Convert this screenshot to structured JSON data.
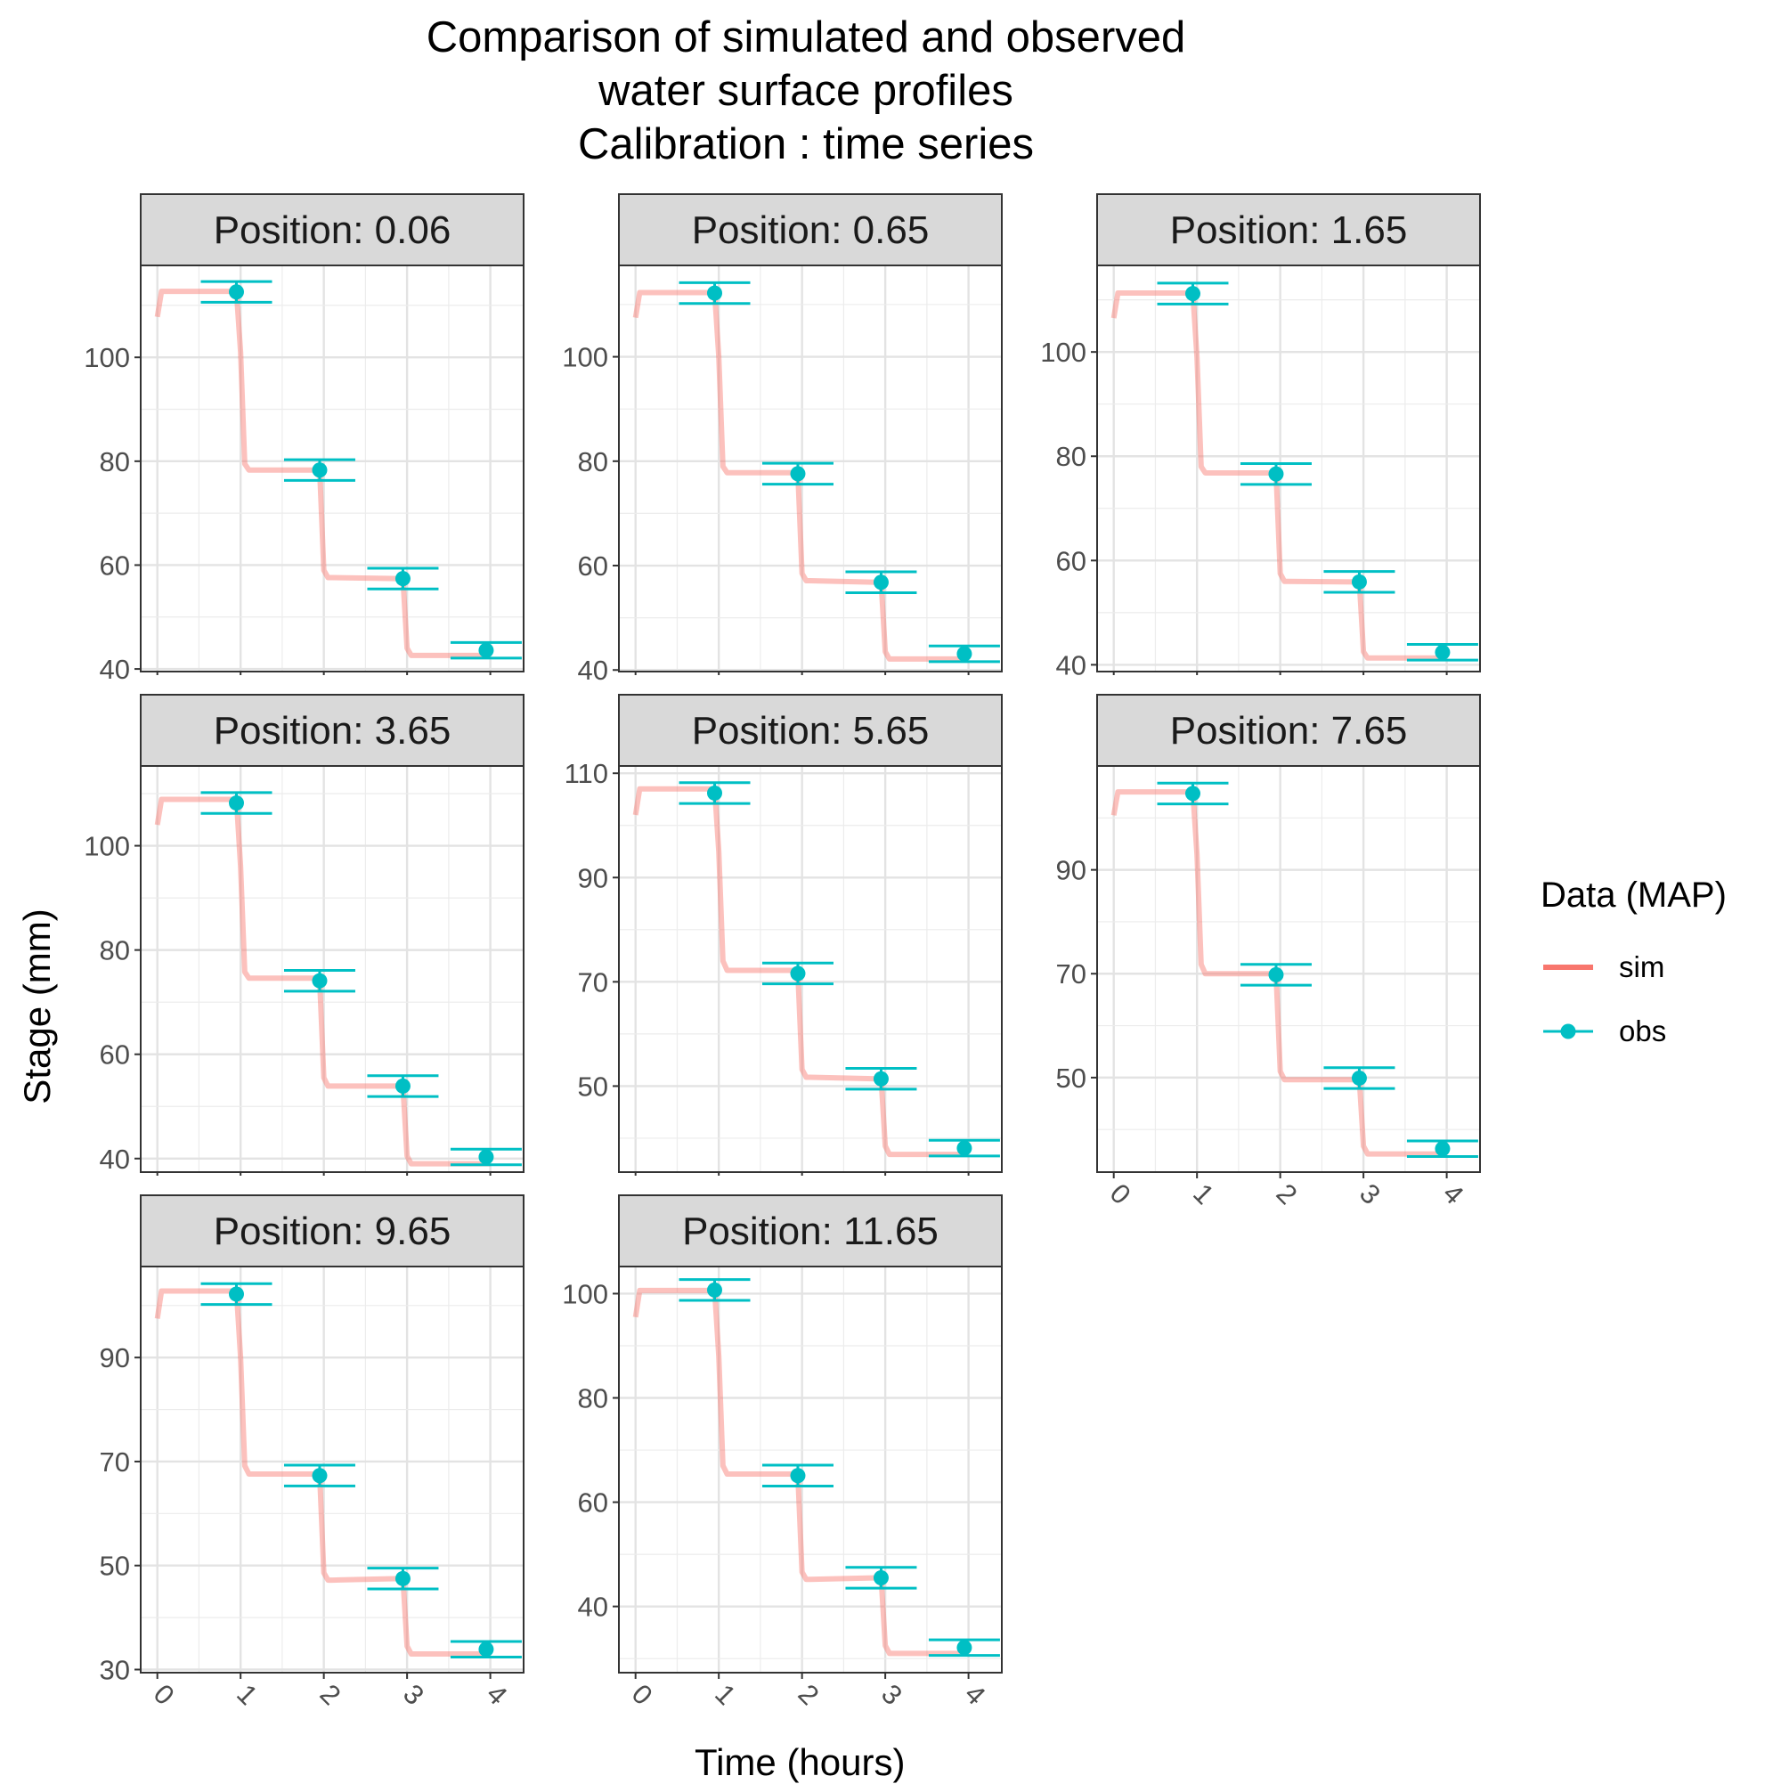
{
  "chart_data": {
    "type": "line",
    "title_lines": [
      "Comparison of simulated and observed",
      "water surface profiles",
      "Calibration : time series"
    ],
    "xlabel": "Time (hours)",
    "ylabel": "Stage (mm)",
    "xlim": [
      -0.2,
      4.4
    ],
    "x_ticks": [
      "0",
      "1",
      "2",
      "3",
      "4"
    ],
    "grid": true,
    "legend": {
      "title": "Data (MAP)",
      "position": "right",
      "entries": [
        {
          "label": "sim",
          "color": "#F8766D",
          "style": "line"
        },
        {
          "label": "obs",
          "color": "#00BFC4",
          "style": "point-errorbar"
        }
      ]
    },
    "series_colors": {
      "sim": "#F8766D",
      "obs": "#00BFC4"
    },
    "panels": [
      {
        "label": "Position:  0.06",
        "ylim": [
          39.5,
          117.7
        ],
        "y_ticks": [
          40,
          60,
          80,
          100
        ],
        "sim": {
          "x": [
            0,
            0.05,
            0.1,
            0.95,
            1.0,
            1.05,
            1.1,
            1.9,
            1.95,
            2.0,
            2.05,
            2.1,
            2.9,
            2.95,
            3.0,
            3.05,
            3.1,
            4.0
          ],
          "y": [
            107.8,
            112.7,
            112.7,
            112.7,
            101,
            79.5,
            78.3,
            78.3,
            78.3,
            59,
            57.6,
            57.6,
            57.4,
            57.4,
            44,
            42.6,
            42.6,
            42.6
          ]
        },
        "obs": {
          "x": [
            0.95,
            1.95,
            2.95,
            3.95
          ],
          "y": [
            112.6,
            78.3,
            57.4,
            43.6
          ],
          "err": [
            2,
            2,
            2,
            1.5
          ]
        }
      },
      {
        "label": "Position:  0.65",
        "ylim": [
          39.7,
          117.5
        ],
        "y_ticks": [
          40,
          60,
          80,
          100
        ],
        "sim": {
          "x": [
            0,
            0.05,
            0.1,
            0.95,
            1.0,
            1.05,
            1.1,
            1.9,
            1.95,
            2.0,
            2.05,
            2.1,
            2.9,
            2.95,
            3.0,
            3.05,
            3.1,
            4.0
          ],
          "y": [
            107.5,
            112.3,
            112.3,
            112.3,
            100,
            79,
            77.8,
            77.8,
            77.6,
            58.5,
            57.1,
            57.1,
            56.8,
            56.8,
            43.5,
            42.1,
            42.1,
            42.1
          ]
        },
        "obs": {
          "x": [
            0.95,
            1.95,
            2.95,
            3.95
          ],
          "y": [
            112.2,
            77.6,
            56.8,
            43.1
          ],
          "err": [
            2,
            2,
            2,
            1.5
          ]
        }
      },
      {
        "label": "Position:  1.65",
        "ylim": [
          38.7,
          116.6
        ],
        "y_ticks": [
          40,
          60,
          80,
          100
        ],
        "sim": {
          "x": [
            0,
            0.05,
            0.1,
            0.95,
            1.0,
            1.05,
            1.1,
            1.9,
            1.95,
            2.0,
            2.05,
            2.1,
            2.9,
            2.95,
            3.0,
            3.05,
            3.1,
            4.0
          ],
          "y": [
            106.5,
            111.3,
            111.3,
            111.3,
            99,
            78,
            76.8,
            76.8,
            76.6,
            57.5,
            56,
            56,
            55.9,
            55.9,
            42.5,
            41.3,
            41.3,
            41.3
          ]
        },
        "obs": {
          "x": [
            0.95,
            1.95,
            2.95,
            3.95
          ],
          "y": [
            111.2,
            76.6,
            55.9,
            42.4
          ],
          "err": [
            2,
            2,
            2,
            1.5
          ]
        }
      },
      {
        "label": "Position:  3.65",
        "ylim": [
          37.4,
          115.3
        ],
        "y_ticks": [
          40,
          60,
          80,
          100
        ],
        "sim": {
          "x": [
            0,
            0.05,
            0.1,
            0.95,
            1.0,
            1.05,
            1.1,
            1.9,
            1.95,
            2.0,
            2.05,
            2.1,
            2.9,
            2.95,
            3.0,
            3.05,
            3.1,
            4.0
          ],
          "y": [
            104,
            108.9,
            108.9,
            108.9,
            96,
            75.8,
            74.6,
            74.6,
            74.1,
            55.5,
            53.9,
            53.9,
            53.9,
            53.9,
            40.5,
            39,
            39,
            39
          ]
        },
        "obs": {
          "x": [
            0.95,
            1.95,
            2.95,
            3.95
          ],
          "y": [
            108.2,
            74.1,
            53.9,
            40.3
          ],
          "err": [
            2,
            2,
            2,
            1.5
          ]
        }
      },
      {
        "label": "Position:  5.65",
        "ylim": [
          33.5,
          111.4
        ],
        "y_ticks": [
          50,
          70,
          90,
          110
        ],
        "sim": {
          "x": [
            0,
            0.05,
            0.1,
            0.95,
            1.0,
            1.05,
            1.1,
            1.9,
            1.95,
            2.0,
            2.05,
            2.1,
            2.9,
            2.95,
            3.0,
            3.05,
            3.1,
            4.0
          ],
          "y": [
            102,
            107,
            107,
            107,
            95,
            74,
            72.2,
            72.2,
            71.6,
            53.2,
            51.7,
            51.7,
            51.4,
            51.4,
            38.5,
            36.9,
            36.9,
            36.9
          ]
        },
        "obs": {
          "x": [
            0.95,
            1.95,
            2.95,
            3.95
          ],
          "y": [
            106.2,
            71.6,
            51.4,
            38.1
          ],
          "err": [
            2,
            2,
            2,
            1.5
          ]
        }
      },
      {
        "label": "Position:  7.65",
        "ylim": [
          31.8,
          110
        ],
        "y_ticks": [
          50,
          70,
          90
        ],
        "sim": {
          "x": [
            0,
            0.05,
            0.1,
            0.95,
            1.0,
            1.05,
            1.1,
            1.9,
            1.95,
            2.0,
            2.05,
            2.1,
            2.9,
            2.95,
            3.0,
            3.05,
            3.1,
            4.0
          ],
          "y": [
            100.5,
            105,
            105,
            105,
            93,
            71.8,
            70,
            70,
            69.8,
            51.2,
            49.6,
            49.6,
            49.6,
            49.6,
            36.8,
            35.3,
            35.3,
            35.3
          ]
        },
        "obs": {
          "x": [
            0.95,
            1.95,
            2.95,
            3.95
          ],
          "y": [
            104.7,
            69.8,
            49.9,
            36.3
          ],
          "err": [
            2,
            2,
            2,
            1.5
          ]
        }
      },
      {
        "label": "Position:  9.65",
        "ylim": [
          29.4,
          107.5
        ],
        "y_ticks": [
          30,
          50,
          70,
          90
        ],
        "sim": {
          "x": [
            0,
            0.05,
            0.1,
            0.95,
            1.0,
            1.05,
            1.1,
            1.9,
            1.95,
            2.0,
            2.05,
            2.1,
            2.9,
            2.95,
            3.0,
            3.05,
            3.1,
            4.0
          ],
          "y": [
            97.5,
            102.8,
            102.8,
            102.8,
            90,
            69.2,
            67.6,
            67.6,
            67.3,
            48.6,
            47.2,
            47.2,
            47.5,
            47.5,
            34.5,
            33,
            33,
            33
          ]
        },
        "obs": {
          "x": [
            0.95,
            1.95,
            2.95,
            3.95
          ],
          "y": [
            102.2,
            67.3,
            47.5,
            33.9
          ],
          "err": [
            2,
            2,
            2,
            1.5
          ]
        }
      },
      {
        "label": "Position:  11.65",
        "ylim": [
          27.3,
          105.2
        ],
        "y_ticks": [
          40,
          60,
          80,
          100
        ],
        "sim": {
          "x": [
            0,
            0.05,
            0.1,
            0.95,
            1.0,
            1.05,
            1.1,
            1.9,
            1.95,
            2.0,
            2.05,
            2.1,
            2.9,
            2.95,
            3.0,
            3.05,
            3.1,
            4.0
          ],
          "y": [
            95.5,
            100.6,
            100.6,
            100.6,
            88,
            67,
            65.4,
            65.4,
            65.1,
            46.6,
            45.2,
            45.2,
            45.5,
            45.5,
            32.5,
            31,
            31,
            31
          ]
        },
        "obs": {
          "x": [
            0.95,
            1.95,
            2.95,
            3.95
          ],
          "y": [
            100.7,
            65.1,
            45.5,
            32.1
          ],
          "err": [
            2,
            2,
            2,
            1.5
          ]
        }
      }
    ]
  }
}
